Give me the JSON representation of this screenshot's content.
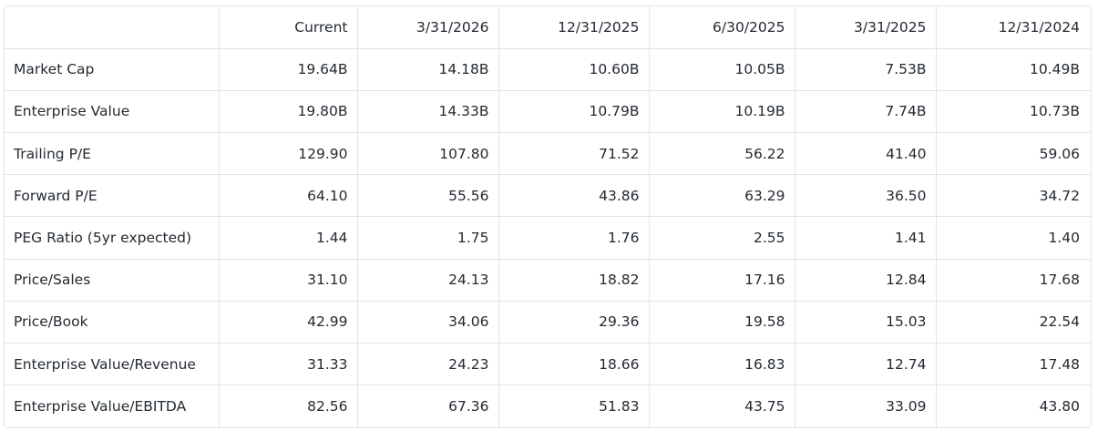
{
  "table": {
    "columns": [
      "Current",
      "3/31/2026",
      "12/31/2025",
      "6/30/2025",
      "3/31/2025",
      "12/31/2024"
    ],
    "rows": [
      [
        "Market Cap",
        "19.64B",
        "14.18B",
        "10.60B",
        "10.05B",
        "7.53B",
        "10.49B"
      ],
      [
        "Enterprise Value",
        "19.80B",
        "14.33B",
        "10.79B",
        "10.19B",
        "7.74B",
        "10.73B"
      ],
      [
        "Trailing P/E",
        "129.90",
        "107.80",
        "71.52",
        "56.22",
        "41.40",
        "59.06"
      ],
      [
        "Forward P/E",
        "64.10",
        "55.56",
        "43.86",
        "63.29",
        "36.50",
        "34.72"
      ],
      [
        "PEG Ratio (5yr expected)",
        "1.44",
        "1.75",
        "1.76",
        "2.55",
        "1.41",
        "1.40"
      ],
      [
        "Price/Sales",
        "31.10",
        "24.13",
        "18.82",
        "17.16",
        "12.84",
        "17.68"
      ],
      [
        "Price/Book",
        "42.99",
        "34.06",
        "29.36",
        "19.58",
        "15.03",
        "22.54"
      ],
      [
        "Enterprise Value/Revenue",
        "31.33",
        "24.23",
        "18.66",
        "16.83",
        "12.74",
        "17.48"
      ],
      [
        "Enterprise Value/EBITDA",
        "82.56",
        "67.36",
        "51.83",
        "43.75",
        "33.09",
        "43.80"
      ]
    ]
  }
}
